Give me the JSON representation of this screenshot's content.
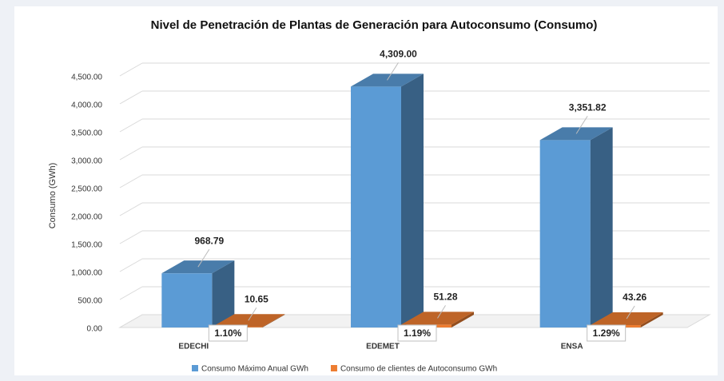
{
  "chart_data": {
    "type": "bar3d",
    "title": "Nivel de Penetración de Plantas de Generación para Autoconsumo (Consumo)",
    "y_axis_label": "Consumo (GWh)",
    "categories": [
      "EDECHI",
      "EDEMET",
      "ENSA"
    ],
    "series": [
      {
        "name": "Consumo Máximo Anual GWh",
        "color": "#5b9bd5",
        "values": [
          968.79,
          4309.0,
          3351.82
        ],
        "value_labels": [
          "968.79",
          "4,309.00",
          "3,351.82"
        ]
      },
      {
        "name": "Consumo de clientes de Autoconsumo GWh",
        "color": "#ed7d31",
        "values": [
          10.65,
          51.28,
          43.26
        ],
        "value_labels": [
          "10.65",
          "51.28",
          "43.26"
        ]
      }
    ],
    "annotations": [
      "1.10%",
      "1.19%",
      "1.29%"
    ],
    "ylim": [
      0,
      5000
    ],
    "yticks": [
      {
        "value": 0,
        "label": "0.00"
      },
      {
        "value": 500,
        "label": "500.00"
      },
      {
        "value": 1000,
        "label": "1,000.00"
      },
      {
        "value": 1500,
        "label": "1,500.00"
      },
      {
        "value": 2000,
        "label": "2,000.00"
      },
      {
        "value": 2500,
        "label": "2,500.00"
      },
      {
        "value": 3000,
        "label": "3,000.00"
      },
      {
        "value": 3500,
        "label": "3,500.00"
      },
      {
        "value": 4000,
        "label": "4,000.00"
      },
      {
        "value": 4500,
        "label": "4,500.00"
      }
    ],
    "grid": true,
    "legend": "bottom"
  }
}
